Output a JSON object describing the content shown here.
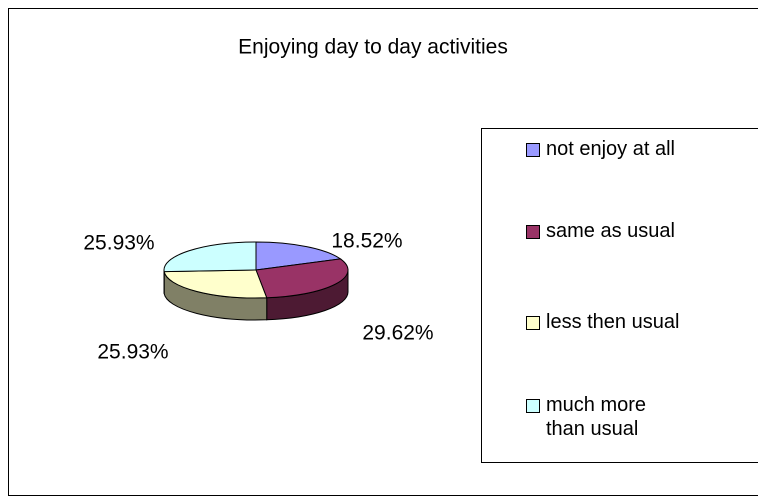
{
  "chart_data": {
    "type": "pie",
    "title": "Enjoying day to day activities",
    "categories": [
      "not enjoy at all",
      "same as usual",
      "less then usual",
      "much more than usual"
    ],
    "values": [
      18.52,
      29.62,
      25.93,
      25.93
    ],
    "value_labels": [
      "18.52%",
      "29.62%",
      "25.93%",
      "25.93%"
    ],
    "colors": [
      "#9999ff",
      "#993366",
      "#ffffcc",
      "#ccffff"
    ],
    "legend": "right"
  }
}
